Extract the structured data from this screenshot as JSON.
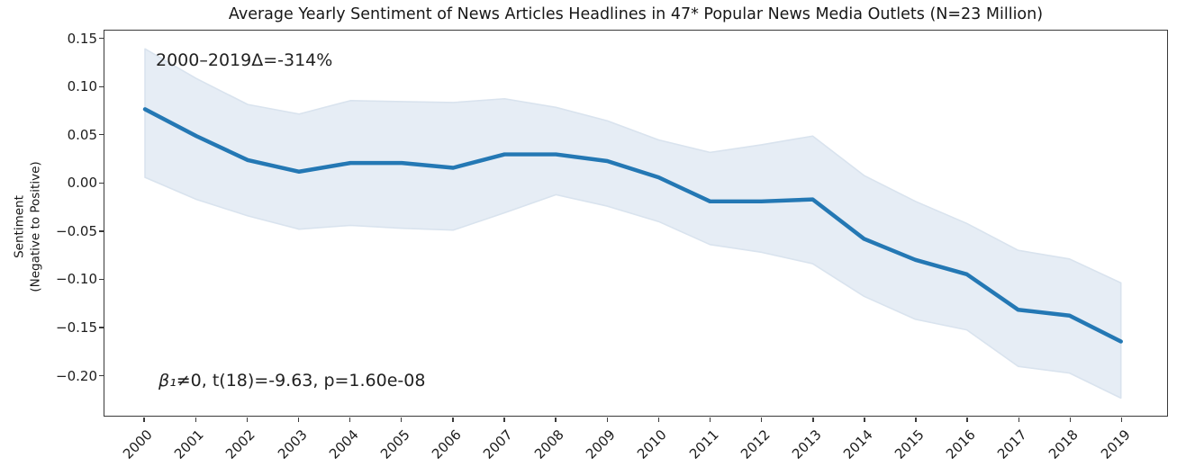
{
  "figure": {
    "title": "Average Yearly Sentiment of News Articles Headlines in 47* Popular News Media Outlets (N=23 Million)",
    "ylabel_line1": "Sentiment",
    "ylabel_line2": "(Negative to Positive)",
    "annotation_top": "2000–2019Δ=-314%",
    "annotation_stats_beta": "β₁",
    "annotation_stats_rest": "≠0, t(18)=-9.63, p=1.60e-08"
  },
  "chart_data": {
    "type": "line",
    "title": "Average Yearly Sentiment of News Articles Headlines in 47* Popular News Media Outlets (N=23 Million)",
    "xlabel": "",
    "ylabel": "Sentiment\n(Negative to Positive)",
    "x": [
      2000,
      2001,
      2002,
      2003,
      2004,
      2005,
      2006,
      2007,
      2008,
      2009,
      2010,
      2011,
      2012,
      2013,
      2014,
      2015,
      2016,
      2017,
      2018,
      2019
    ],
    "series": [
      {
        "name": "mean yearly headline sentiment",
        "values": [
          0.077,
          0.049,
          0.024,
          0.012,
          0.021,
          0.021,
          0.016,
          0.03,
          0.03,
          0.023,
          0.006,
          -0.019,
          -0.019,
          -0.017,
          -0.058,
          -0.08,
          -0.095,
          -0.132,
          -0.138,
          -0.165
        ]
      }
    ],
    "band": {
      "name": "confidence band",
      "upper": [
        0.14,
        0.109,
        0.082,
        0.072,
        0.086,
        0.085,
        0.084,
        0.088,
        0.079,
        0.065,
        0.045,
        0.032,
        0.04,
        0.049,
        0.008,
        -0.019,
        -0.042,
        -0.07,
        -0.079,
        -0.104
      ],
      "lower": [
        0.006,
        -0.017,
        -0.034,
        -0.048,
        -0.044,
        -0.047,
        -0.049,
        -0.031,
        -0.012,
        -0.024,
        -0.04,
        -0.064,
        -0.072,
        -0.084,
        -0.118,
        -0.142,
        -0.153,
        -0.191,
        -0.198,
        -0.224
      ]
    },
    "annotations": [
      "2000–2019Δ=-314%",
      "β₁≠0, t(18)=-9.63, p=1.60e-08"
    ],
    "xlim": [
      1999.21,
      2019.9
    ],
    "ylim": [
      -0.2424,
      0.159
    ],
    "yticks": [
      {
        "value": 0.15,
        "label": "0.15"
      },
      {
        "value": 0.1,
        "label": "0.10"
      },
      {
        "value": 0.05,
        "label": "0.05"
      },
      {
        "value": 0.0,
        "label": "0.00"
      },
      {
        "value": -0.05,
        "label": "−0.05"
      },
      {
        "value": -0.1,
        "label": "−0.10"
      },
      {
        "value": -0.15,
        "label": "−0.15"
      },
      {
        "value": -0.2,
        "label": "−0.20"
      }
    ],
    "grid": false,
    "legend": null,
    "colors": {
      "line": "#2478b4",
      "band_fill": "#e6edf5",
      "band_edge": "#d9e3ee",
      "spine": "#3a3a3a",
      "text": "#1c1c1c"
    }
  }
}
